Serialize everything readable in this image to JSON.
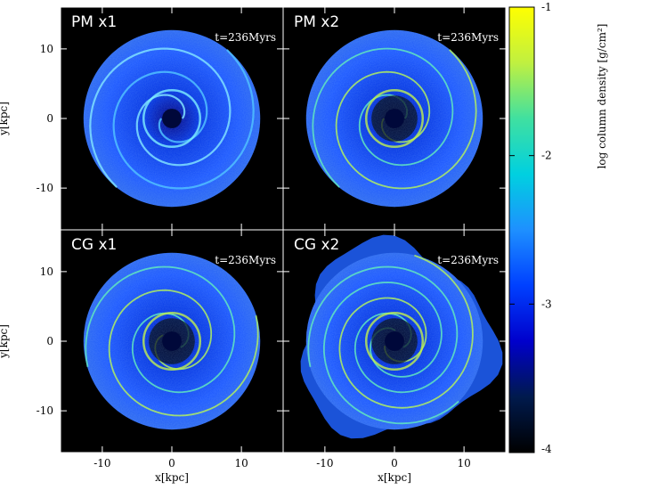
{
  "figure": {
    "panels": [
      {
        "id": "pm-x1",
        "title": "PM x1",
        "time_label": "t=236Myrs",
        "col": 0,
        "row": 0,
        "style": "smooth"
      },
      {
        "id": "pm-x2",
        "title": "PM x2",
        "time_label": "t=236Myrs",
        "col": 1,
        "row": 0,
        "style": "mid"
      },
      {
        "id": "cg-x1",
        "title": "CG x1",
        "time_label": "t=236Myrs",
        "col": 0,
        "row": 1,
        "style": "mid"
      },
      {
        "id": "cg-x2",
        "title": "CG x2",
        "time_label": "t=236Myrs",
        "col": 1,
        "row": 1,
        "style": "rough"
      }
    ],
    "x_ticks": [
      {
        "value": -10,
        "label": "-10"
      },
      {
        "value": 0,
        "label": "0"
      },
      {
        "value": 10,
        "label": "10"
      }
    ],
    "y_ticks": [
      {
        "value": 10,
        "label": "10"
      },
      {
        "value": 0,
        "label": "0"
      },
      {
        "value": -10,
        "label": "-10"
      }
    ],
    "xlabel": "x[kpc]",
    "ylabel": "y[kpc]",
    "xlim": [
      -16,
      16
    ],
    "ylim": [
      -16,
      16
    ],
    "colorbar": {
      "label": "log column density [g/cm²]",
      "range": [
        -4,
        -1
      ],
      "ticks": [
        {
          "value": -1,
          "label": "-1"
        },
        {
          "value": -2,
          "label": "-2"
        },
        {
          "value": -3,
          "label": "-3"
        },
        {
          "value": -4,
          "label": "-4"
        }
      ],
      "colors": [
        "#000000",
        "#001a4d",
        "#0000cc",
        "#0040ff",
        "#1e90ff",
        "#00d0e0",
        "#40e0a0",
        "#c0f040",
        "#ffff00"
      ]
    }
  }
}
